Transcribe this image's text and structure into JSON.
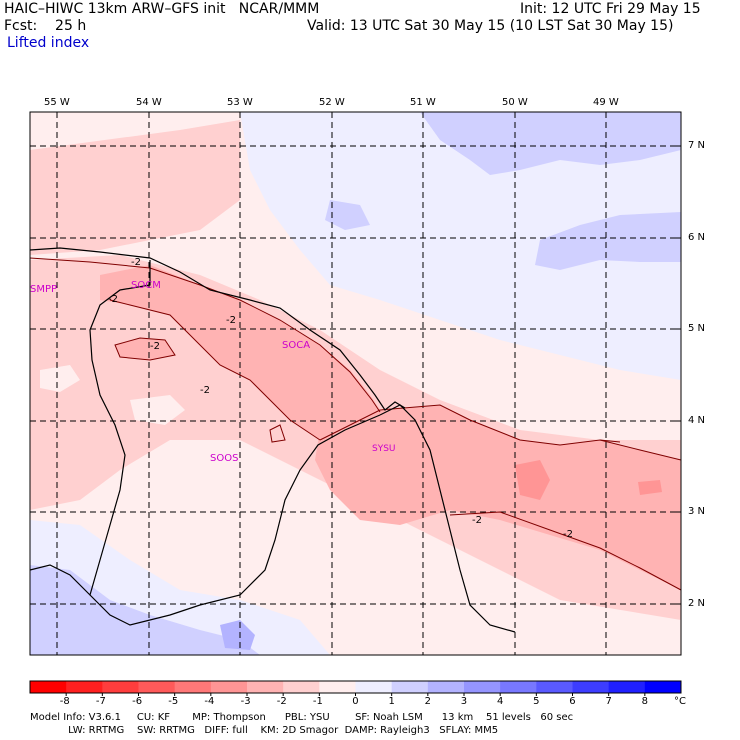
{
  "header": {
    "title_left": "HAIC–HIWC 13km ARW–GFS init   NCAR/MMM",
    "fcst_label": "Fcst:    25 h",
    "field_name": "Lifted index",
    "init": "Init: 12 UTC Fri 29 May 15",
    "valid": "Valid: 13 UTC Sat 30 May 15 (10 LST Sat 30 May 15)"
  },
  "axes": {
    "lon_labels": [
      "55 W",
      "54 W",
      "53 W",
      "52 W",
      "51 W",
      "50 W",
      "49 W"
    ],
    "lat_labels": [
      "7 N",
      "6 N",
      "5 N",
      "4 N",
      "3 N",
      "2 N"
    ]
  },
  "stations": [
    "SMPP",
    "SOCM",
    "SOCA",
    "SYSU",
    "SOOS"
  ],
  "contour_labels": [
    "-2",
    "-2",
    "-2",
    "-2",
    "-2",
    "-2",
    "-2"
  ],
  "colorbar": {
    "values": [
      "-8",
      "-7",
      "-6",
      "-5",
      "-4",
      "-3",
      "-2",
      "-1",
      "0",
      "1",
      "2",
      "3",
      "4",
      "5",
      "6",
      "7",
      "8"
    ],
    "unit": "°C",
    "colors": [
      "#ff0000",
      "#ff2020",
      "#ff3d3d",
      "#ff5a5a",
      "#ff7878",
      "#ff9595",
      "#ffb3b3",
      "#ffd0d0",
      "#ffeeee",
      "#eeeeff",
      "#d0d0ff",
      "#b3b3ff",
      "#9595ff",
      "#7878ff",
      "#5a5aff",
      "#3d3dff",
      "#2020ff",
      "#0000ff"
    ]
  },
  "footer": {
    "line1": "Model Info: V3.6.1     CU: KF       MP: Thompson      PBL: YSU        SF: Noah LSM      13 km    51 levels   60 sec",
    "line2": "            LW: RRTMG    SW: RRTMG   DIFF: full    KM: 2D Smagor  DAMP: Rayleigh3   SFLAY: MM5"
  }
}
